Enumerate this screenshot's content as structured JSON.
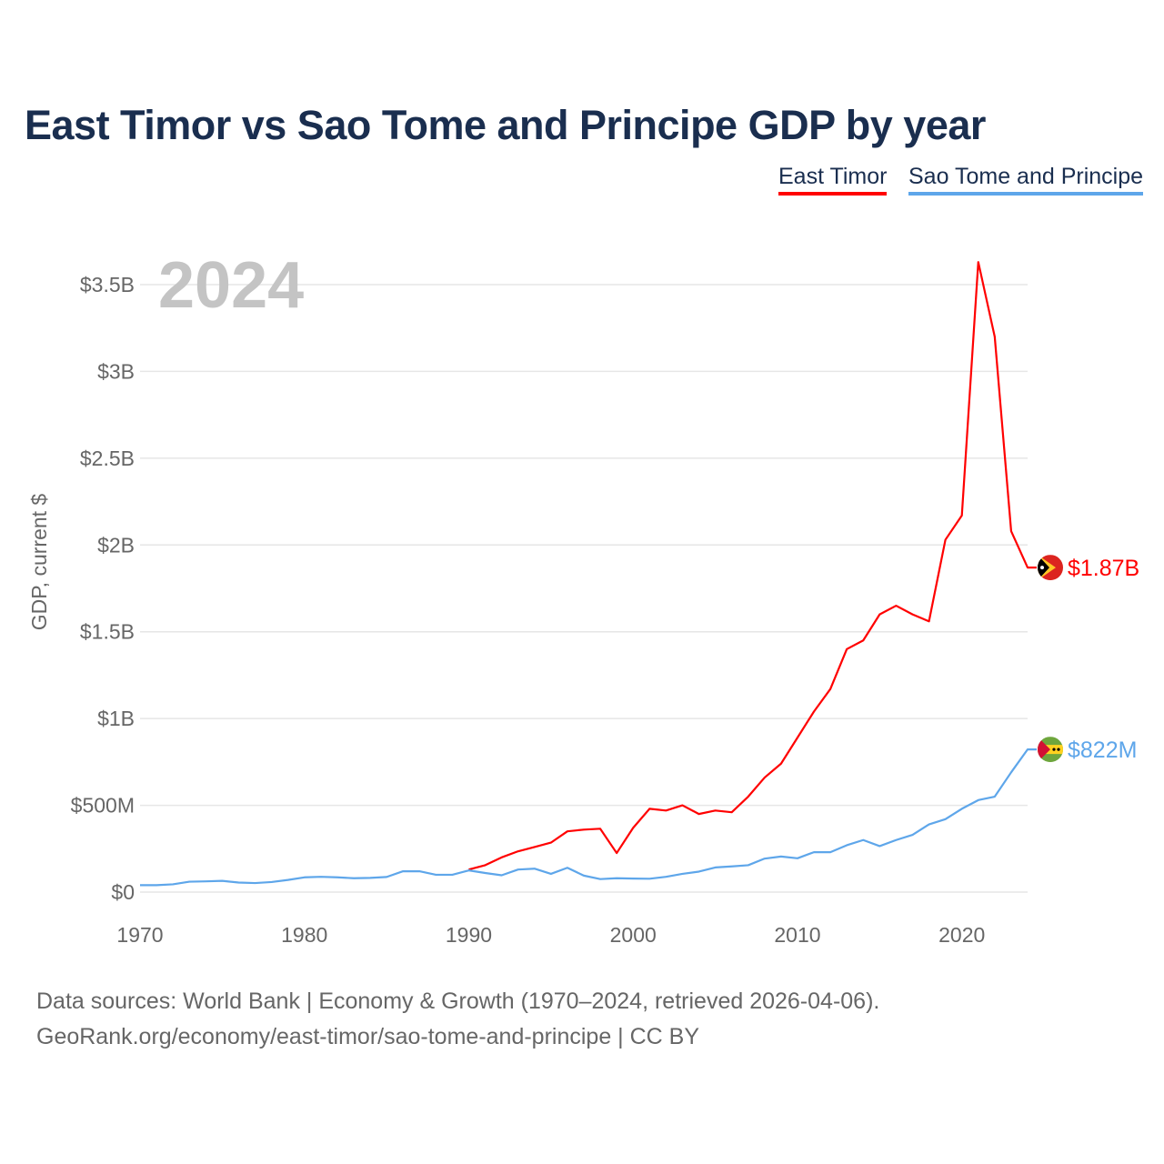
{
  "title": "East Timor vs Sao Tome and Principe GDP by year",
  "chart_data": {
    "type": "line",
    "title": "East Timor vs Sao Tome and Principe GDP by year",
    "ylabel": "GDP, current $",
    "xlabel": "",
    "year_label": "2024",
    "xlim": [
      1970,
      2024
    ],
    "ylim": [
      0,
      3.5
    ],
    "y_unit": "billion USD",
    "x_ticks": [
      1970,
      1980,
      1990,
      2000,
      2010,
      2020
    ],
    "x_tick_labels": [
      "1970",
      "1980",
      "1990",
      "2000",
      "2010",
      "2020"
    ],
    "y_ticks": [
      0,
      0.5,
      1,
      1.5,
      2,
      2.5,
      3,
      3.5
    ],
    "y_tick_labels": [
      "$0",
      "$500M",
      "$1B",
      "$1.5B",
      "$2B",
      "$2.5B",
      "$3B",
      "$3.5B"
    ],
    "grid": true,
    "legend_position": "top-right",
    "series": [
      {
        "name": "East Timor",
        "color": "#ff0000",
        "end_label": "$1.87B",
        "x_start": 1990,
        "values": [
          0.13,
          0.155,
          0.2,
          0.235,
          0.26,
          0.285,
          0.35,
          0.36,
          0.365,
          0.225,
          0.37,
          0.48,
          0.47,
          0.5,
          0.45,
          0.47,
          0.46,
          0.55,
          0.66,
          0.74,
          0.89,
          1.04,
          1.17,
          1.4,
          1.45,
          1.6,
          1.65,
          1.6,
          1.56,
          2.03,
          2.17,
          3.63,
          3.2,
          2.08,
          1.87
        ]
      },
      {
        "name": "Sao Tome and Principe",
        "color": "#5ea6ea",
        "end_label": "$822M",
        "x_start": 1970,
        "values": [
          0.04,
          0.04,
          0.045,
          0.06,
          0.062,
          0.065,
          0.055,
          0.052,
          0.058,
          0.07,
          0.085,
          0.088,
          0.085,
          0.08,
          0.082,
          0.087,
          0.12,
          0.12,
          0.1,
          0.1,
          0.125,
          0.11,
          0.097,
          0.13,
          0.135,
          0.105,
          0.14,
          0.095,
          0.075,
          0.08,
          0.078,
          0.077,
          0.088,
          0.105,
          0.118,
          0.142,
          0.148,
          0.155,
          0.193,
          0.205,
          0.195,
          0.23,
          0.23,
          0.27,
          0.3,
          0.265,
          0.3,
          0.33,
          0.39,
          0.42,
          0.48,
          0.53,
          0.55,
          0.69,
          0.822
        ]
      }
    ]
  },
  "footer": {
    "line1": "Data sources: World Bank | Economy & Growth (1970–2024, retrieved 2026-04-06).",
    "line2": "GeoRank.org/economy/east-timor/sao-tome-and-principe | CC BY"
  }
}
